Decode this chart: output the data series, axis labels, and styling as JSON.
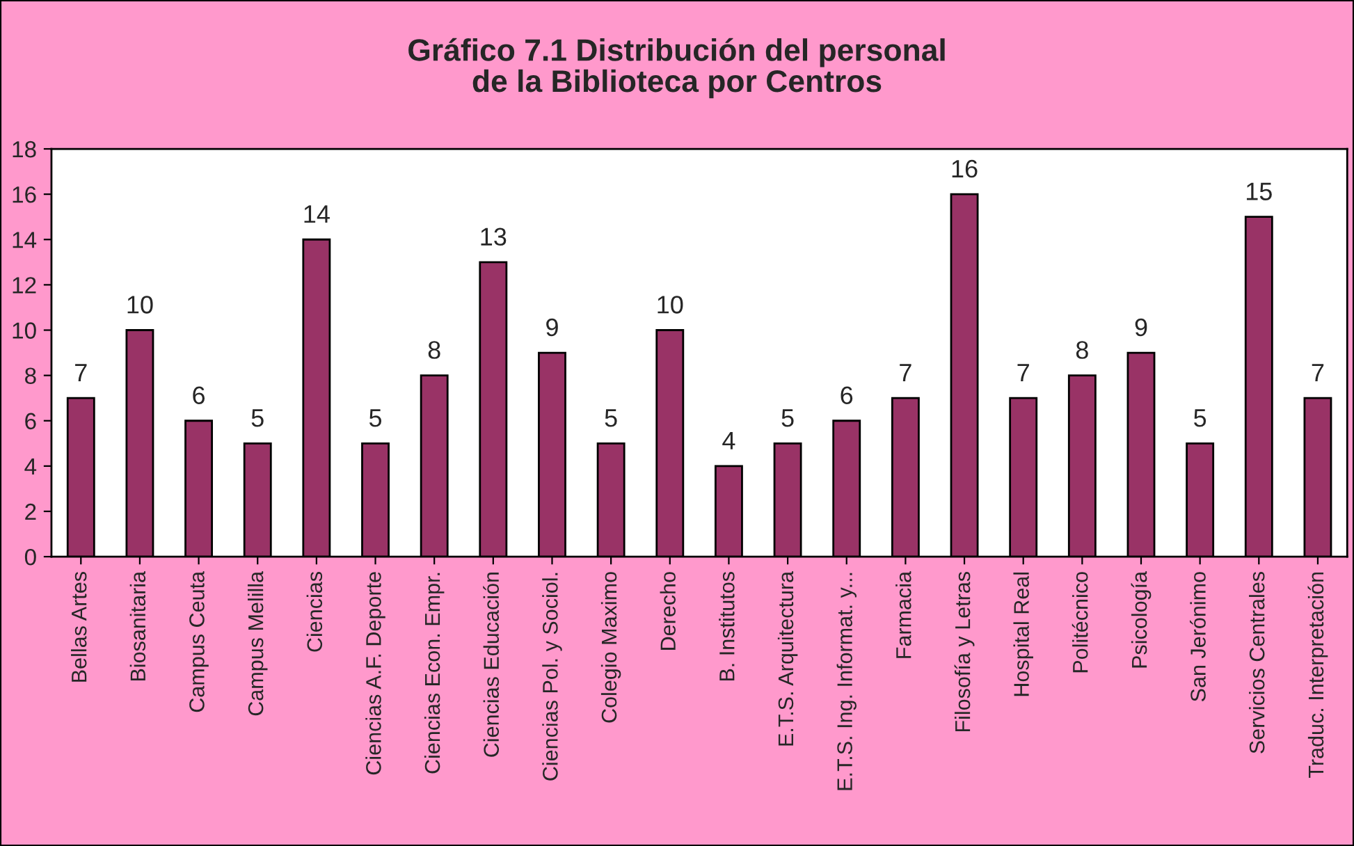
{
  "chart_data": {
    "type": "bar",
    "title": "Gráfico 7.1 Distribución del personal\nde la Biblioteca por Centros",
    "categories": [
      "Bellas Artes",
      "Biosanitaria",
      "Campus Ceuta",
      "Campus Melilla",
      "Ciencias",
      "Ciencias A.F. Deporte",
      "Ciencias Econ. Empr.",
      "Ciencias Educación",
      "Ciencias Pol. y Sociol.",
      "Colegio Maximo",
      "Derecho",
      "B. Institutos",
      "E.T.S. Arquitectura",
      "E.T.S. Ing. Informat. y...",
      "Farmacia",
      "Filosofía y Letras",
      "Hospital Real",
      "Politécnico",
      "Psicología",
      "San Jerónimo",
      "Servicios Centrales",
      "Traduc. Interpretación"
    ],
    "values": [
      7,
      10,
      6,
      5,
      14,
      5,
      8,
      13,
      9,
      5,
      10,
      4,
      5,
      6,
      7,
      16,
      7,
      8,
      9,
      5,
      15,
      7
    ],
    "color": "#993366",
    "ylim": [
      0,
      18
    ],
    "yticks": [
      0,
      2,
      4,
      6,
      8,
      10,
      12,
      14,
      16,
      18
    ],
    "data_labels": true,
    "grid": false,
    "legend": false
  }
}
